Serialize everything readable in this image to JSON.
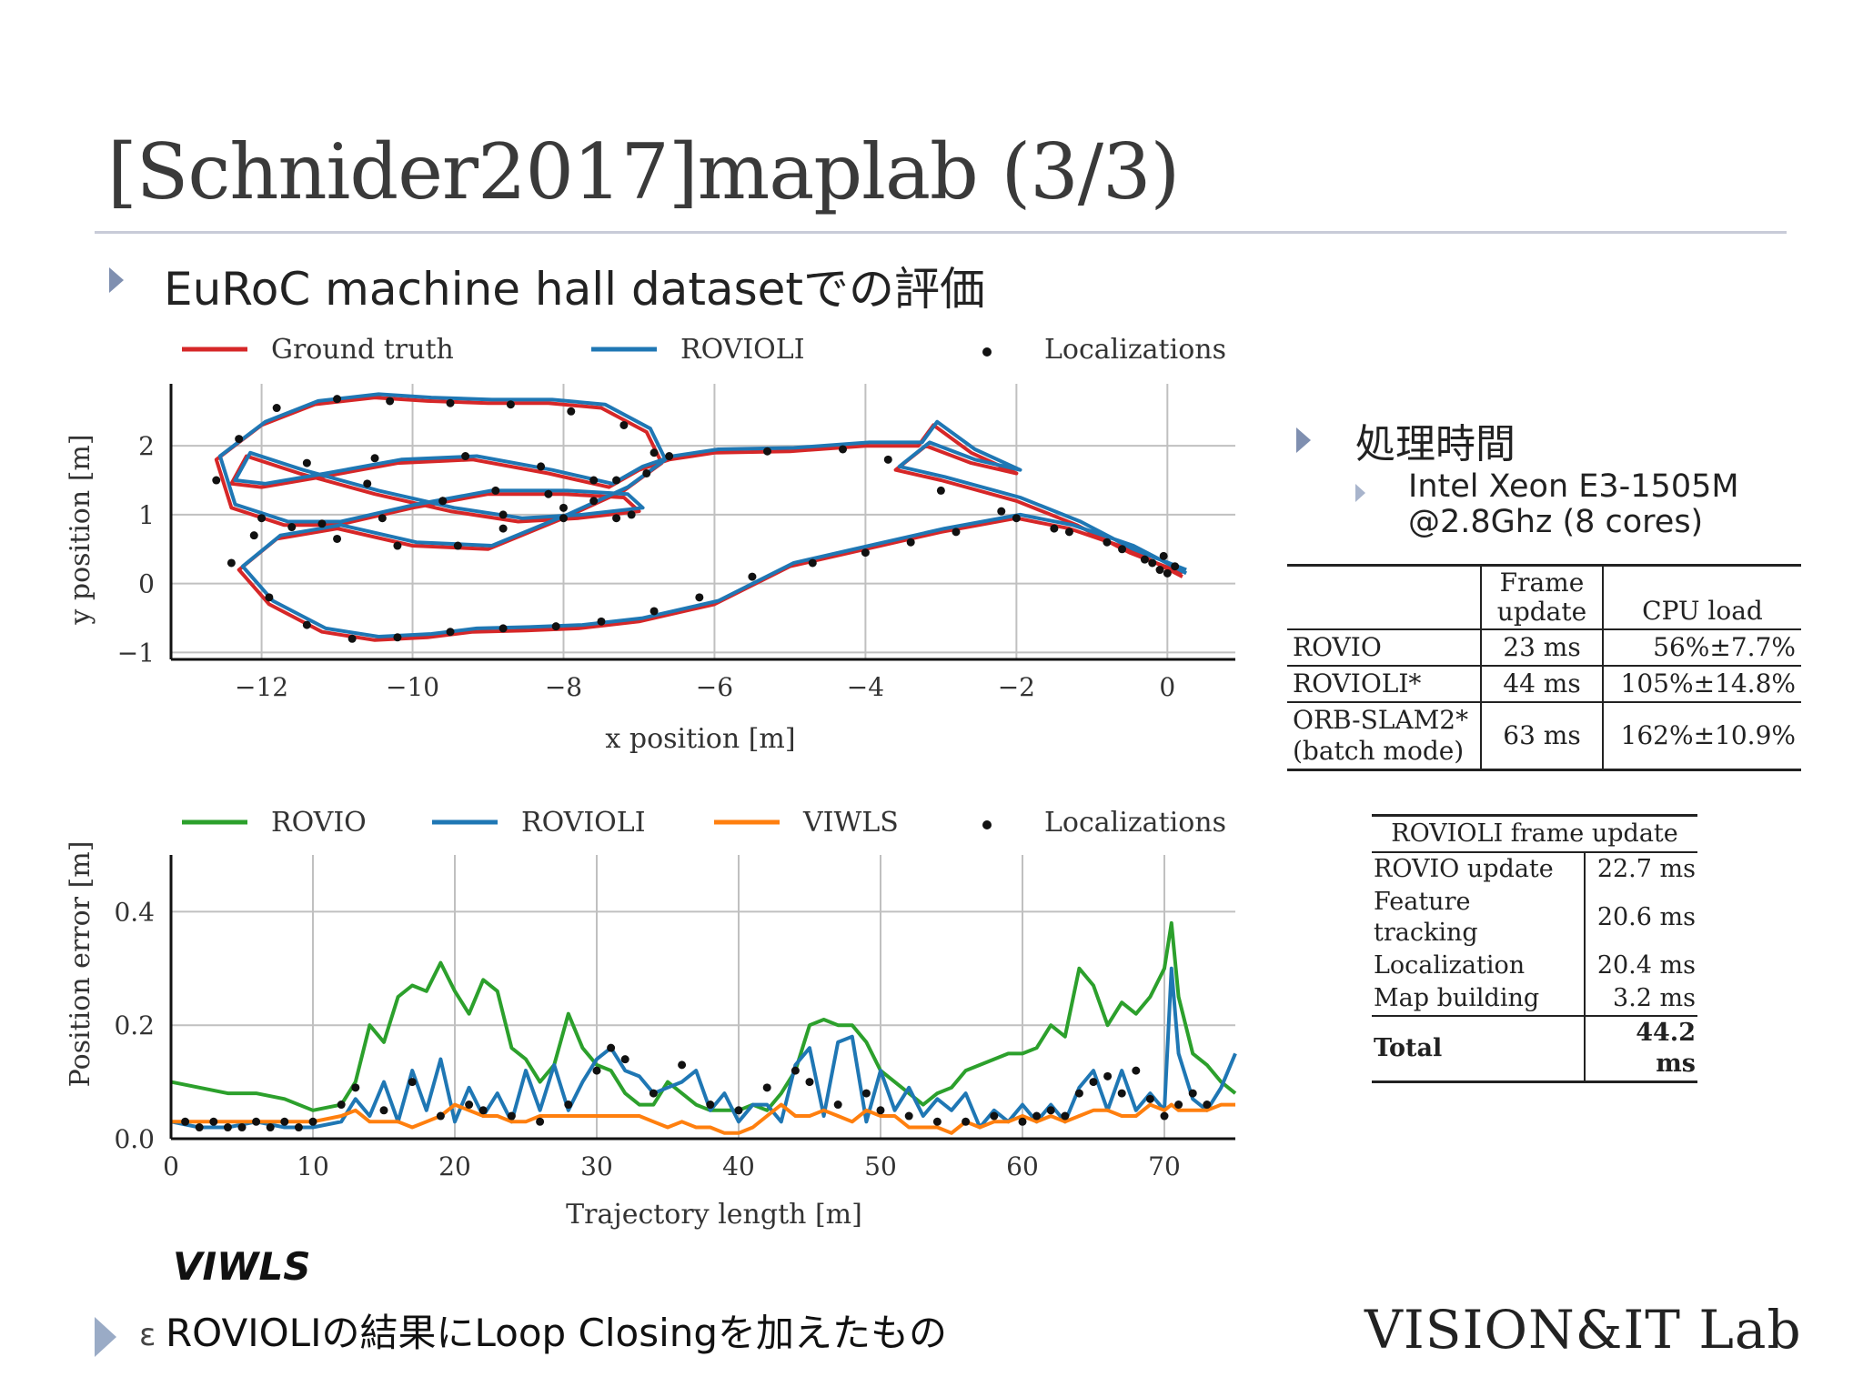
{
  "slide": {
    "title": "[Schnider2017]maplab (3/3)",
    "bullet_main": "EuRoC machine hall datasetでの評価",
    "bullet_processing": "処理時間",
    "sub_bullet_line1": "Intel Xeon E3-1505M",
    "sub_bullet_line2": "@2.8Ghz (8 cores)",
    "viwls_label": "VIWLS",
    "bottom_bullet_prefix": "ε",
    "bottom_bullet": "ROVIOLIの結果にLoop Closingを加えたもの",
    "lab_logo": "VISION&IT Lab"
  },
  "colors": {
    "ground_truth": "#d62728",
    "rovioli": "#1f77b4",
    "rovio": "#2ca02c",
    "viwls": "#ff7f0e",
    "localizations": "#111111",
    "bullet": "#7f8fb0"
  },
  "chart_data": [
    {
      "type": "line",
      "xlabel": "x position [m]",
      "ylabel": "y position [m]",
      "xlim": [
        -13.2,
        0.9
      ],
      "ylim": [
        -1.1,
        2.9
      ],
      "xticks": [
        -12,
        -10,
        -8,
        -6,
        -4,
        -2,
        0
      ],
      "yticks": [
        -1,
        0,
        1,
        2
      ],
      "xtick_labels": [
        "−12",
        "−10",
        "−8",
        "−6",
        "−4",
        "−2",
        "0"
      ],
      "ytick_labels": [
        "−1",
        "0",
        "1",
        "2"
      ],
      "grid": true,
      "legend": "top",
      "series": [
        {
          "name": "Ground truth",
          "color": "#d62728",
          "x": [
            0.2,
            -0.5,
            -1.3,
            -2.0,
            -3.0,
            -4.0,
            -5.0,
            -6.0,
            -7.0,
            -7.8,
            -8.5,
            -9.2,
            -9.8,
            -10.5,
            -11.2,
            -11.9,
            -12.3,
            -11.8,
            -11.0,
            -10.0,
            -9.0,
            -8.0,
            -7.2,
            -6.7,
            -6.9,
            -7.5,
            -8.2,
            -9.0,
            -9.8,
            -10.5,
            -11.3,
            -12.0,
            -12.6,
            -12.4,
            -11.7,
            -11.0,
            -10.0,
            -9.0,
            -8.0,
            -7.2,
            -7.0,
            -7.8,
            -8.6,
            -9.5,
            -10.5,
            -11.5,
            -12.2,
            -12.4,
            -12.0,
            -11.2,
            -10.2,
            -9.2,
            -8.2,
            -7.4,
            -7.0,
            -6.6,
            -6.0,
            -5.0,
            -4.0,
            -3.3,
            -3.1,
            -2.6,
            -2.0,
            -2.6,
            -3.2,
            -3.6,
            -3.0,
            -2.0,
            -1.2,
            -0.5,
            0.2
          ],
          "y": [
            0.1,
            0.5,
            0.8,
            0.95,
            0.75,
            0.5,
            0.25,
            -0.3,
            -0.55,
            -0.65,
            -0.68,
            -0.7,
            -0.78,
            -0.82,
            -0.7,
            -0.3,
            0.2,
            0.65,
            0.8,
            0.55,
            0.5,
            0.95,
            1.35,
            1.75,
            2.2,
            2.55,
            2.62,
            2.62,
            2.65,
            2.7,
            2.6,
            2.3,
            1.8,
            1.1,
            0.85,
            0.85,
            1.1,
            1.3,
            1.3,
            1.25,
            1.05,
            0.95,
            0.9,
            1.05,
            1.3,
            1.6,
            1.85,
            1.45,
            1.4,
            1.55,
            1.75,
            1.8,
            1.6,
            1.4,
            1.65,
            1.8,
            1.9,
            1.92,
            2.0,
            2.0,
            2.3,
            1.9,
            1.6,
            1.75,
            2.0,
            1.65,
            1.5,
            1.2,
            0.85,
            0.45,
            0.15
          ]
        },
        {
          "name": "ROVIOLI",
          "color": "#1f77b4",
          "x": [
            0.25,
            -0.45,
            -1.25,
            -1.95,
            -2.95,
            -3.95,
            -4.95,
            -5.95,
            -6.95,
            -7.75,
            -8.45,
            -9.15,
            -9.75,
            -10.45,
            -11.15,
            -11.85,
            -12.25,
            -11.75,
            -10.95,
            -9.95,
            -8.95,
            -7.95,
            -7.15,
            -6.65,
            -6.85,
            -7.45,
            -8.15,
            -8.95,
            -9.75,
            -10.45,
            -11.25,
            -11.95,
            -12.55,
            -12.35,
            -11.65,
            -10.95,
            -9.95,
            -8.95,
            -7.95,
            -7.15,
            -6.95,
            -7.75,
            -8.55,
            -9.45,
            -10.45,
            -11.45,
            -12.15,
            -12.35,
            -11.95,
            -11.15,
            -10.15,
            -9.15,
            -8.15,
            -7.35,
            -6.95,
            -6.55,
            -5.95,
            -4.95,
            -3.95,
            -3.25,
            -3.05,
            -2.55,
            -1.95,
            -2.55,
            -3.15,
            -3.55,
            -2.95,
            -1.95,
            -1.15,
            -0.45,
            0.25
          ],
          "y": [
            0.15,
            0.55,
            0.85,
            1.0,
            0.8,
            0.55,
            0.3,
            -0.25,
            -0.5,
            -0.6,
            -0.63,
            -0.65,
            -0.73,
            -0.77,
            -0.65,
            -0.25,
            0.25,
            0.7,
            0.85,
            0.6,
            0.55,
            1.0,
            1.4,
            1.8,
            2.25,
            2.6,
            2.67,
            2.67,
            2.7,
            2.75,
            2.65,
            2.35,
            1.85,
            1.15,
            0.9,
            0.9,
            1.15,
            1.35,
            1.35,
            1.3,
            1.1,
            1.0,
            0.95,
            1.1,
            1.35,
            1.65,
            1.9,
            1.5,
            1.45,
            1.6,
            1.8,
            1.85,
            1.65,
            1.45,
            1.7,
            1.85,
            1.95,
            1.97,
            2.05,
            2.05,
            2.35,
            1.95,
            1.65,
            1.8,
            2.05,
            1.7,
            1.55,
            1.25,
            0.9,
            0.5,
            0.2
          ]
        }
      ],
      "localizations": {
        "name": "Localizations",
        "x": [
          -0.2,
          -0.1,
          0.0,
          0.1,
          -0.3,
          -0.05,
          -0.8,
          -1.5,
          -2.0,
          -2.8,
          -3.4,
          -4.0,
          -4.7,
          -5.5,
          -6.2,
          -6.8,
          -7.5,
          -8.1,
          -8.8,
          -9.5,
          -10.2,
          -10.8,
          -11.4,
          -11.9,
          -12.4,
          -12.1,
          -11.6,
          -11.0,
          -10.2,
          -9.4,
          -8.8,
          -8.0,
          -7.3,
          -6.8,
          -7.2,
          -7.9,
          -8.7,
          -9.5,
          -10.3,
          -11.0,
          -11.8,
          -12.3,
          -12.6,
          -12.0,
          -11.2,
          -10.4,
          -9.6,
          -8.9,
          -8.2,
          -7.6,
          -7.1,
          -7.3,
          -8.0,
          -8.8,
          -9.6,
          -10.6,
          -11.4,
          -10.5,
          -9.3,
          -8.3,
          -7.6,
          -6.9,
          -6.6,
          -5.3,
          -4.3,
          -3.7,
          -3.0,
          -2.2,
          -1.3,
          -0.6
        ],
        "y": [
          0.3,
          0.2,
          0.15,
          0.25,
          0.35,
          0.4,
          0.6,
          0.8,
          0.95,
          0.75,
          0.6,
          0.45,
          0.3,
          0.1,
          -0.2,
          -0.4,
          -0.55,
          -0.62,
          -0.65,
          -0.7,
          -0.78,
          -0.8,
          -0.6,
          -0.2,
          0.3,
          0.7,
          0.82,
          0.65,
          0.55,
          0.55,
          0.8,
          1.1,
          1.5,
          1.9,
          2.3,
          2.5,
          2.6,
          2.62,
          2.65,
          2.68,
          2.55,
          2.1,
          1.5,
          0.95,
          0.87,
          0.95,
          1.2,
          1.35,
          1.3,
          1.2,
          1.0,
          0.95,
          0.95,
          1.0,
          1.2,
          1.45,
          1.75,
          1.82,
          1.85,
          1.7,
          1.5,
          1.6,
          1.85,
          1.92,
          1.95,
          1.8,
          1.35,
          1.05,
          0.75,
          0.5
        ]
      }
    },
    {
      "type": "line",
      "xlabel": "Trajectory length [m]",
      "ylabel": "Position error [m]",
      "xlim": [
        0,
        75
      ],
      "ylim": [
        0,
        0.5
      ],
      "xticks": [
        0,
        10,
        20,
        30,
        40,
        50,
        60,
        70
      ],
      "yticks": [
        0.0,
        0.2,
        0.4
      ],
      "xtick_labels": [
        "0",
        "10",
        "20",
        "30",
        "40",
        "50",
        "60",
        "70"
      ],
      "ytick_labels": [
        "0.0",
        "0.2",
        "0.4"
      ],
      "grid": true,
      "legend": "top",
      "x": [
        0,
        2,
        4,
        6,
        8,
        10,
        12,
        13,
        14,
        15,
        16,
        17,
        18,
        19,
        20,
        21,
        22,
        23,
        24,
        25,
        26,
        27,
        28,
        29,
        30,
        31,
        32,
        33,
        34,
        35,
        36,
        37,
        38,
        39,
        40,
        41,
        42,
        43,
        44,
        45,
        46,
        47,
        48,
        49,
        50,
        51,
        52,
        53,
        54,
        55,
        56,
        57,
        58,
        59,
        60,
        61,
        62,
        63,
        64,
        65,
        66,
        67,
        68,
        69,
        70,
        70.5,
        71,
        72,
        73,
        74,
        75
      ],
      "series": [
        {
          "name": "ROVIO",
          "color": "#2ca02c",
          "y": [
            0.1,
            0.09,
            0.08,
            0.08,
            0.07,
            0.05,
            0.06,
            0.1,
            0.2,
            0.17,
            0.25,
            0.27,
            0.26,
            0.31,
            0.26,
            0.22,
            0.28,
            0.26,
            0.16,
            0.14,
            0.1,
            0.13,
            0.22,
            0.16,
            0.13,
            0.12,
            0.08,
            0.06,
            0.06,
            0.1,
            0.08,
            0.06,
            0.05,
            0.05,
            0.05,
            0.06,
            0.05,
            0.08,
            0.12,
            0.2,
            0.21,
            0.2,
            0.2,
            0.17,
            0.12,
            0.1,
            0.08,
            0.06,
            0.08,
            0.09,
            0.12,
            0.13,
            0.14,
            0.15,
            0.15,
            0.16,
            0.2,
            0.18,
            0.3,
            0.27,
            0.2,
            0.24,
            0.22,
            0.25,
            0.3,
            0.38,
            0.25,
            0.15,
            0.13,
            0.1,
            0.08
          ]
        },
        {
          "name": "ROVIOLI",
          "color": "#1f77b4",
          "y": [
            0.03,
            0.02,
            0.02,
            0.03,
            0.02,
            0.02,
            0.03,
            0.07,
            0.04,
            0.1,
            0.03,
            0.12,
            0.05,
            0.14,
            0.03,
            0.09,
            0.04,
            0.08,
            0.03,
            0.12,
            0.05,
            0.13,
            0.05,
            0.1,
            0.14,
            0.16,
            0.12,
            0.11,
            0.08,
            0.09,
            0.1,
            0.12,
            0.05,
            0.08,
            0.03,
            0.06,
            0.06,
            0.03,
            0.13,
            0.16,
            0.04,
            0.17,
            0.18,
            0.03,
            0.12,
            0.05,
            0.09,
            0.04,
            0.07,
            0.05,
            0.08,
            0.02,
            0.05,
            0.03,
            0.06,
            0.03,
            0.06,
            0.03,
            0.09,
            0.12,
            0.05,
            0.12,
            0.05,
            0.08,
            0.05,
            0.3,
            0.15,
            0.07,
            0.05,
            0.09,
            0.15
          ]
        },
        {
          "name": "VIWLS",
          "color": "#ff7f0e",
          "y": [
            0.03,
            0.03,
            0.03,
            0.03,
            0.03,
            0.03,
            0.04,
            0.05,
            0.03,
            0.03,
            0.03,
            0.02,
            0.03,
            0.04,
            0.06,
            0.05,
            0.04,
            0.04,
            0.03,
            0.03,
            0.04,
            0.04,
            0.04,
            0.04,
            0.04,
            0.04,
            0.04,
            0.04,
            0.03,
            0.02,
            0.03,
            0.02,
            0.02,
            0.01,
            0.01,
            0.02,
            0.04,
            0.06,
            0.04,
            0.04,
            0.05,
            0.04,
            0.03,
            0.05,
            0.04,
            0.04,
            0.02,
            0.02,
            0.02,
            0.01,
            0.03,
            0.02,
            0.03,
            0.03,
            0.04,
            0.03,
            0.04,
            0.03,
            0.04,
            0.05,
            0.05,
            0.04,
            0.04,
            0.06,
            0.05,
            0.06,
            0.05,
            0.05,
            0.05,
            0.06,
            0.06
          ]
        }
      ],
      "localizations": {
        "name": "Localizations",
        "x": [
          1,
          2,
          3,
          4,
          5,
          6,
          7,
          8,
          9,
          10,
          12,
          13,
          15,
          17,
          19,
          21,
          22,
          24,
          26,
          28,
          30,
          31,
          32,
          34,
          36,
          38,
          40,
          42,
          44,
          45,
          47,
          49,
          50,
          52,
          54,
          56,
          58,
          60,
          61,
          62,
          63,
          64,
          65,
          66,
          67,
          68,
          69,
          70,
          71,
          72,
          73
        ],
        "y": [
          0.03,
          0.02,
          0.03,
          0.02,
          0.02,
          0.03,
          0.02,
          0.03,
          0.02,
          0.03,
          0.06,
          0.09,
          0.05,
          0.1,
          0.04,
          0.06,
          0.05,
          0.04,
          0.03,
          0.06,
          0.12,
          0.16,
          0.14,
          0.08,
          0.13,
          0.06,
          0.05,
          0.09,
          0.12,
          0.1,
          0.06,
          0.08,
          0.05,
          0.04,
          0.03,
          0.03,
          0.04,
          0.03,
          0.04,
          0.05,
          0.04,
          0.08,
          0.1,
          0.11,
          0.08,
          0.12,
          0.07,
          0.04,
          0.06,
          0.08,
          0.06
        ]
      }
    }
  ],
  "table_frame": {
    "header_col2_line1": "Frame",
    "header_col2_line2": "update",
    "header_col3": "CPU load",
    "rows": [
      {
        "name": "ROVIO",
        "frame": "23  ms",
        "cpu": "56%±7.7%"
      },
      {
        "name": "ROVIOLI*",
        "frame": "44  ms",
        "cpu": "105%±14.8%"
      },
      {
        "name": "ORB-SLAM2*",
        "name_line2": "(batch mode)",
        "frame": "63  ms",
        "cpu": "162%±10.9%"
      }
    ]
  },
  "table_breakdown": {
    "header": "ROVIOLI frame update",
    "rows": [
      {
        "label": "ROVIO update",
        "value": "22.7 ms"
      },
      {
        "label": "Feature tracking",
        "value": "20.6 ms"
      },
      {
        "label": "Localization",
        "value": "20.4 ms"
      },
      {
        "label": "Map building",
        "value": "3.2 ms"
      }
    ],
    "total_label": "Total",
    "total_value": "44.2 ms"
  }
}
